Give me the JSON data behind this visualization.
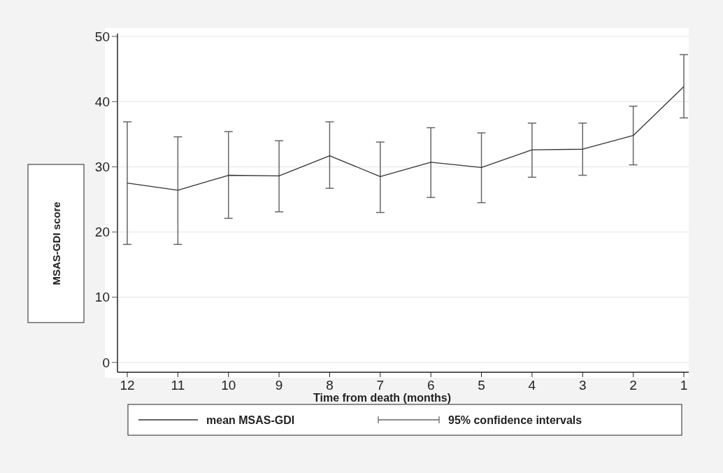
{
  "chart_data": {
    "type": "line",
    "xlabel": "Time from death (months)",
    "ylabel": "MSAS-GDI score",
    "categories": [
      "12",
      "11",
      "10",
      "9",
      "8",
      "7",
      "6",
      "5",
      "4",
      "3",
      "2",
      "1"
    ],
    "series": [
      {
        "name": "mean MSAS-GDI",
        "color": "#333333",
        "values": [
          27.5,
          26.4,
          28.7,
          28.6,
          31.7,
          28.5,
          30.7,
          29.9,
          32.6,
          32.7,
          34.8,
          42.3
        ],
        "errors": [
          [
            18.1,
            36.9
          ],
          [
            18.1,
            34.6
          ],
          [
            22.1,
            35.4
          ],
          [
            23.1,
            34.0
          ],
          [
            26.7,
            36.9
          ],
          [
            23.0,
            33.8
          ],
          [
            25.3,
            36.0
          ],
          [
            24.5,
            35.2
          ],
          [
            28.4,
            36.7
          ],
          [
            28.7,
            36.7
          ],
          [
            30.3,
            39.3
          ],
          [
            37.5,
            47.2
          ]
        ]
      }
    ],
    "annotations": [
      "95% confidence intervals"
    ],
    "ylim": [
      -1.5,
      50
    ],
    "yticks": [
      0,
      10,
      20,
      30,
      40,
      50
    ],
    "grid": "y",
    "legend": "bottom",
    "marker": "none",
    "line_style": "solid"
  }
}
